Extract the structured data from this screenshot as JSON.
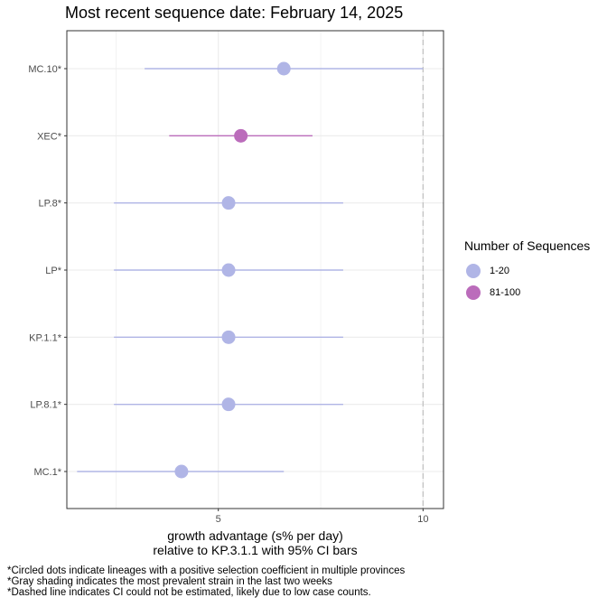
{
  "chart_data": {
    "type": "scatter",
    "title": "Most recent sequence date: February 14, 2025",
    "xlabel": [
      "growth advantage (s% per day)",
      "relative to  KP.3.1.1  with 95% CI bars"
    ],
    "ylabel": "",
    "xlim": [
      1.3,
      10.5
    ],
    "x_ticks": [
      5,
      10
    ],
    "x_tick_labels": [
      "5",
      "10"
    ],
    "grid": true,
    "dashed_reference_x": 10,
    "categories": [
      "MC.10*",
      "XEC*",
      "LP.8*",
      "LP*",
      "KP.1.1*",
      "LP.8.1*",
      "MC.1*"
    ],
    "points": [
      {
        "lineage": "MC.10*",
        "estimate": 6.6,
        "ci_low": 3.2,
        "ci_high": 10.0,
        "group": "1-20"
      },
      {
        "lineage": "XEC*",
        "estimate": 5.55,
        "ci_low": 3.8,
        "ci_high": 7.3,
        "group": "81-100"
      },
      {
        "lineage": "LP.8*",
        "estimate": 5.25,
        "ci_low": 2.45,
        "ci_high": 8.05,
        "group": "1-20"
      },
      {
        "lineage": "LP*",
        "estimate": 5.25,
        "ci_low": 2.45,
        "ci_high": 8.05,
        "group": "1-20"
      },
      {
        "lineage": "KP.1.1*",
        "estimate": 5.25,
        "ci_low": 2.45,
        "ci_high": 8.05,
        "group": "1-20"
      },
      {
        "lineage": "LP.8.1*",
        "estimate": 5.25,
        "ci_low": 2.45,
        "ci_high": 8.05,
        "group": "1-20"
      },
      {
        "lineage": "MC.1*",
        "estimate": 4.1,
        "ci_low": 1.55,
        "ci_high": 6.6,
        "group": "1-20"
      }
    ],
    "legend": {
      "title": "Number of Sequences",
      "placement": "right",
      "items": [
        {
          "label": "1-20",
          "color": "#b0b5e6"
        },
        {
          "label": "81-100",
          "color": "#bb6cbb"
        }
      ]
    }
  },
  "caption": [
    "*Circled dots indicate lineages with a positive selection coefficient in multiple provinces",
    "*Gray shading indicates the most prevalent strain in the last two weeks",
    "*Dashed line indicates CI could not be estimated, likely due to low case counts."
  ],
  "colors": {
    "panel_border": "#333333",
    "grid": "#ebebeb",
    "dashed_line": "#bfbfbf"
  }
}
